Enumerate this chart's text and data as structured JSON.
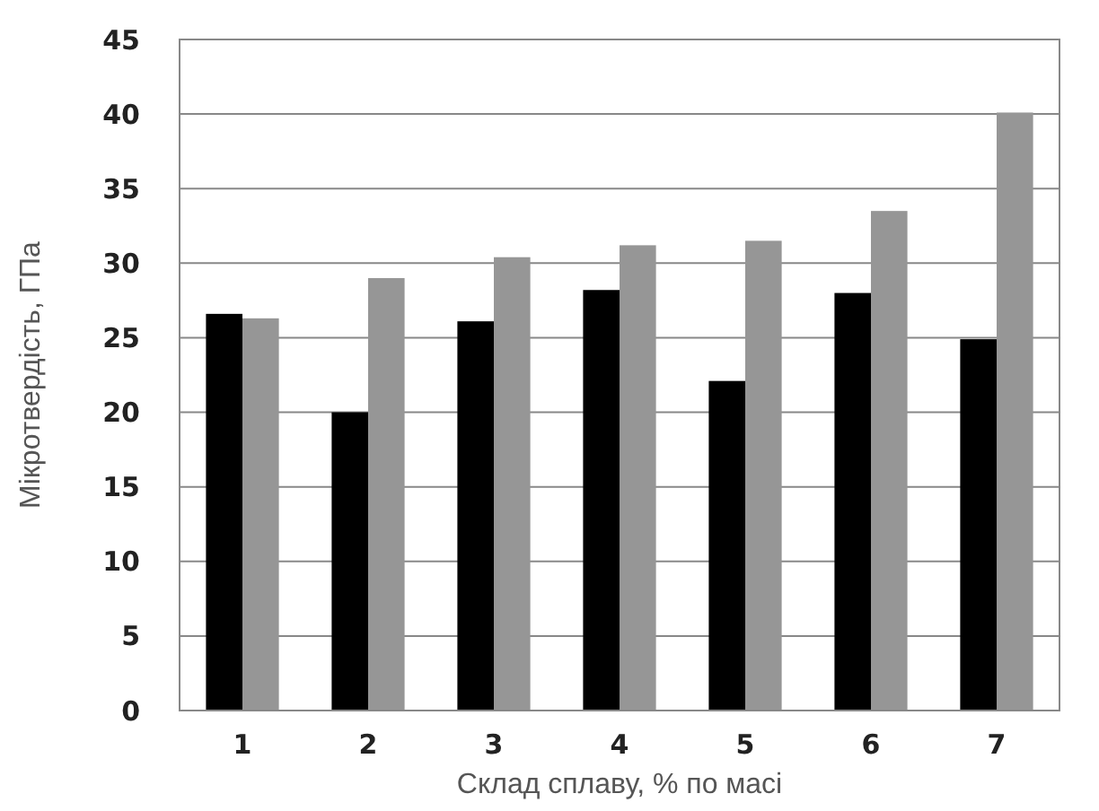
{
  "chart_data": {
    "type": "bar",
    "xlabel": "Склад сплаву, % по масі",
    "ylabel": "Мікротвердість, ГПа",
    "categories": [
      "1",
      "2",
      "3",
      "4",
      "5",
      "6",
      "7"
    ],
    "series": [
      {
        "color": "#000000",
        "values": [
          26.6,
          20.0,
          26.1,
          28.2,
          22.1,
          28.0,
          24.9
        ]
      },
      {
        "color": "#969696",
        "values": [
          26.3,
          29.0,
          30.4,
          31.2,
          31.5,
          33.5,
          40.1
        ]
      }
    ],
    "ylim": [
      0,
      45
    ],
    "yticks": [
      0,
      5,
      10,
      15,
      20,
      25,
      30,
      35,
      40,
      45
    ],
    "grid": "y"
  }
}
